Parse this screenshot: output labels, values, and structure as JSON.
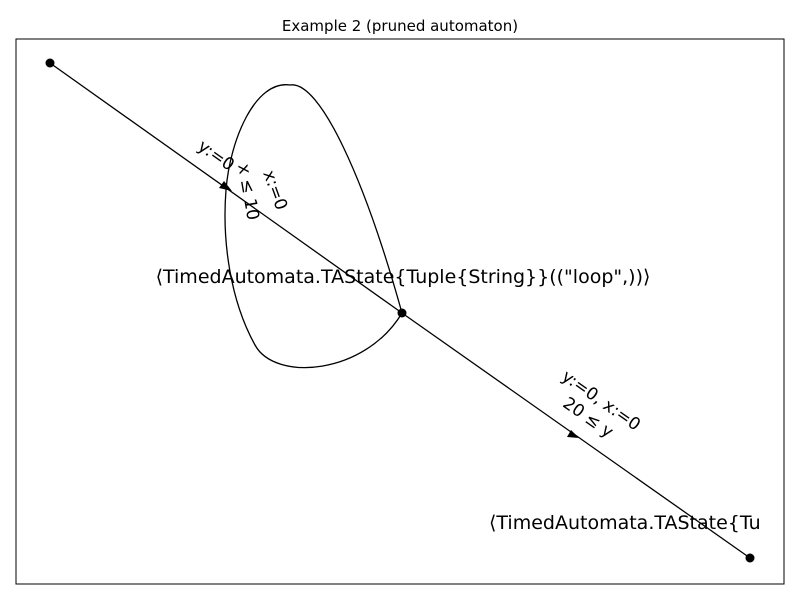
{
  "title": "Example 2 (pruned automaton)",
  "colors": {
    "ink": "#000000",
    "background": "#ffffff"
  },
  "nodes": [
    {
      "id": "n-top-left",
      "label": ""
    },
    {
      "id": "n-loop",
      "label": "⟨TimedAutomata.TAState{Tuple{String}}((\"loop\",))⟩"
    },
    {
      "id": "n-bottom-right",
      "label": "⟨TimedAutomata.TAState{Tu"
    }
  ],
  "edges": [
    {
      "id": "e-init-to-loop",
      "from": "n-top-left",
      "to": "n-loop",
      "reset": "y:=0",
      "guard": ""
    },
    {
      "id": "e-self-loop",
      "from": "n-loop",
      "to": "n-loop",
      "reset": "x:=0",
      "guard": "x ≤ 10"
    },
    {
      "id": "e-loop-to-exit",
      "from": "n-loop",
      "to": "n-bottom-right",
      "reset": "y:=0, x:=0",
      "guard": "20 ≤ y"
    }
  ]
}
